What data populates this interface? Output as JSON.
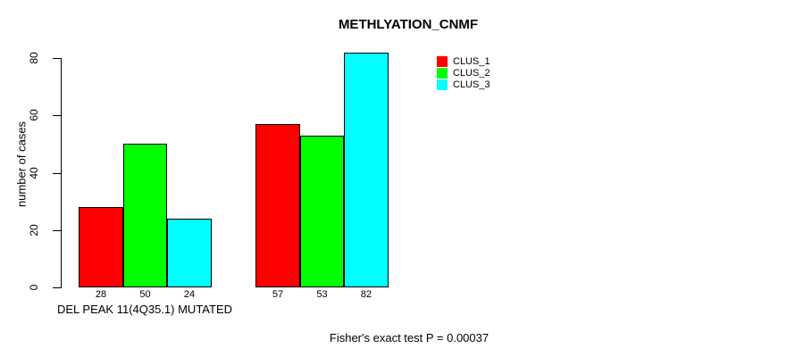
{
  "chart_data": {
    "type": "bar",
    "title": "METHLYATION_CNMF",
    "ylabel": "number of cases",
    "xlabel": "",
    "ylim": [
      0,
      80
    ],
    "yticks": [
      0,
      20,
      40,
      60,
      80
    ],
    "categories": [
      "DEL PEAK 11(4Q35.1) MUTATED",
      ""
    ],
    "group_label": "DEL PEAK 11(4Q35.1) MUTATED",
    "series": [
      {
        "name": "CLUS_1",
        "color": "#ff0000",
        "values": [
          28,
          57
        ]
      },
      {
        "name": "CLUS_2",
        "color": "#00ff00",
        "values": [
          50,
          53
        ]
      },
      {
        "name": "CLUS_3",
        "color": "#00ffff",
        "values": [
          24,
          82
        ]
      }
    ],
    "bar_value_labels": [
      [
        28,
        50,
        24
      ],
      [
        57,
        53,
        82
      ]
    ],
    "annotation": "Fisher's exact test P = 0.00037",
    "legend_position": "top-right",
    "grid": false,
    "background_color": "#ffffff",
    "axis_color": "#000000",
    "text_color": "#000000"
  }
}
